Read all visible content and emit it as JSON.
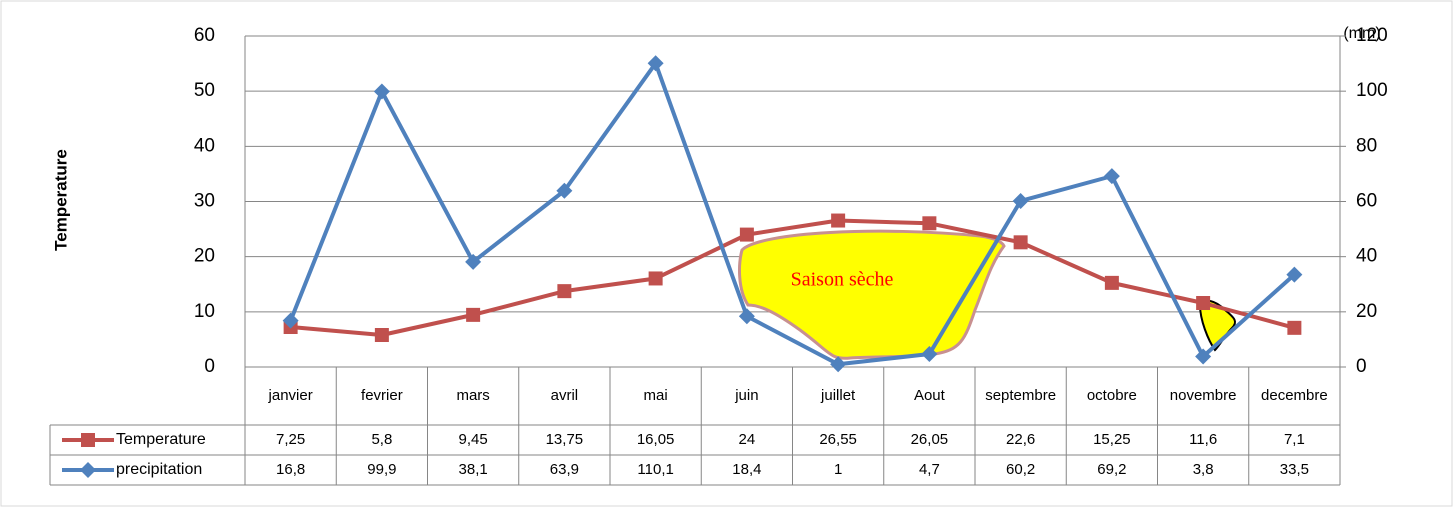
{
  "chart_data": {
    "type": "line",
    "y_label": "Temperature",
    "y2_label": "(mm)",
    "annotation": "Saison sèche",
    "categories": [
      "janvier",
      "fevrier",
      "mars",
      "avril",
      "mai",
      "juin",
      "juillet",
      "Aout",
      "septembre",
      "octobre",
      "novembre",
      "decembre"
    ],
    "series": [
      {
        "name": "Temperature",
        "color": "#c0504d",
        "marker": "square",
        "values": [
          7.25,
          5.8,
          9.45,
          13.75,
          16.05,
          24,
          26.55,
          26.05,
          22.6,
          15.25,
          11.6,
          7.1
        ],
        "value_labels": [
          "7,25",
          "5,8",
          "9,45",
          "13,75",
          "16,05",
          "24",
          "26,55",
          "26,05",
          "22,6",
          "15,25",
          "11,6",
          "7,1"
        ]
      },
      {
        "name": "precipitation",
        "color": "#4f81bd",
        "marker": "diamond",
        "axis": "y2",
        "values": [
          16.8,
          99.9,
          38.1,
          63.9,
          110.1,
          18.4,
          1,
          4.7,
          60.2,
          69.2,
          3.8,
          33.5
        ],
        "value_labels": [
          "16,8",
          "99,9",
          "38,1",
          "63,9",
          "110,1",
          "18,4",
          "1",
          "4,7",
          "60,2",
          "69,2",
          "3,8",
          "33,5"
        ]
      }
    ],
    "ylim": [
      0,
      60
    ],
    "yticks": [
      0,
      10,
      20,
      30,
      40,
      50,
      60
    ],
    "y2lim": [
      0,
      120
    ],
    "y2ticks": [
      0,
      20,
      40,
      60,
      80,
      100,
      120
    ],
    "grid": true
  }
}
